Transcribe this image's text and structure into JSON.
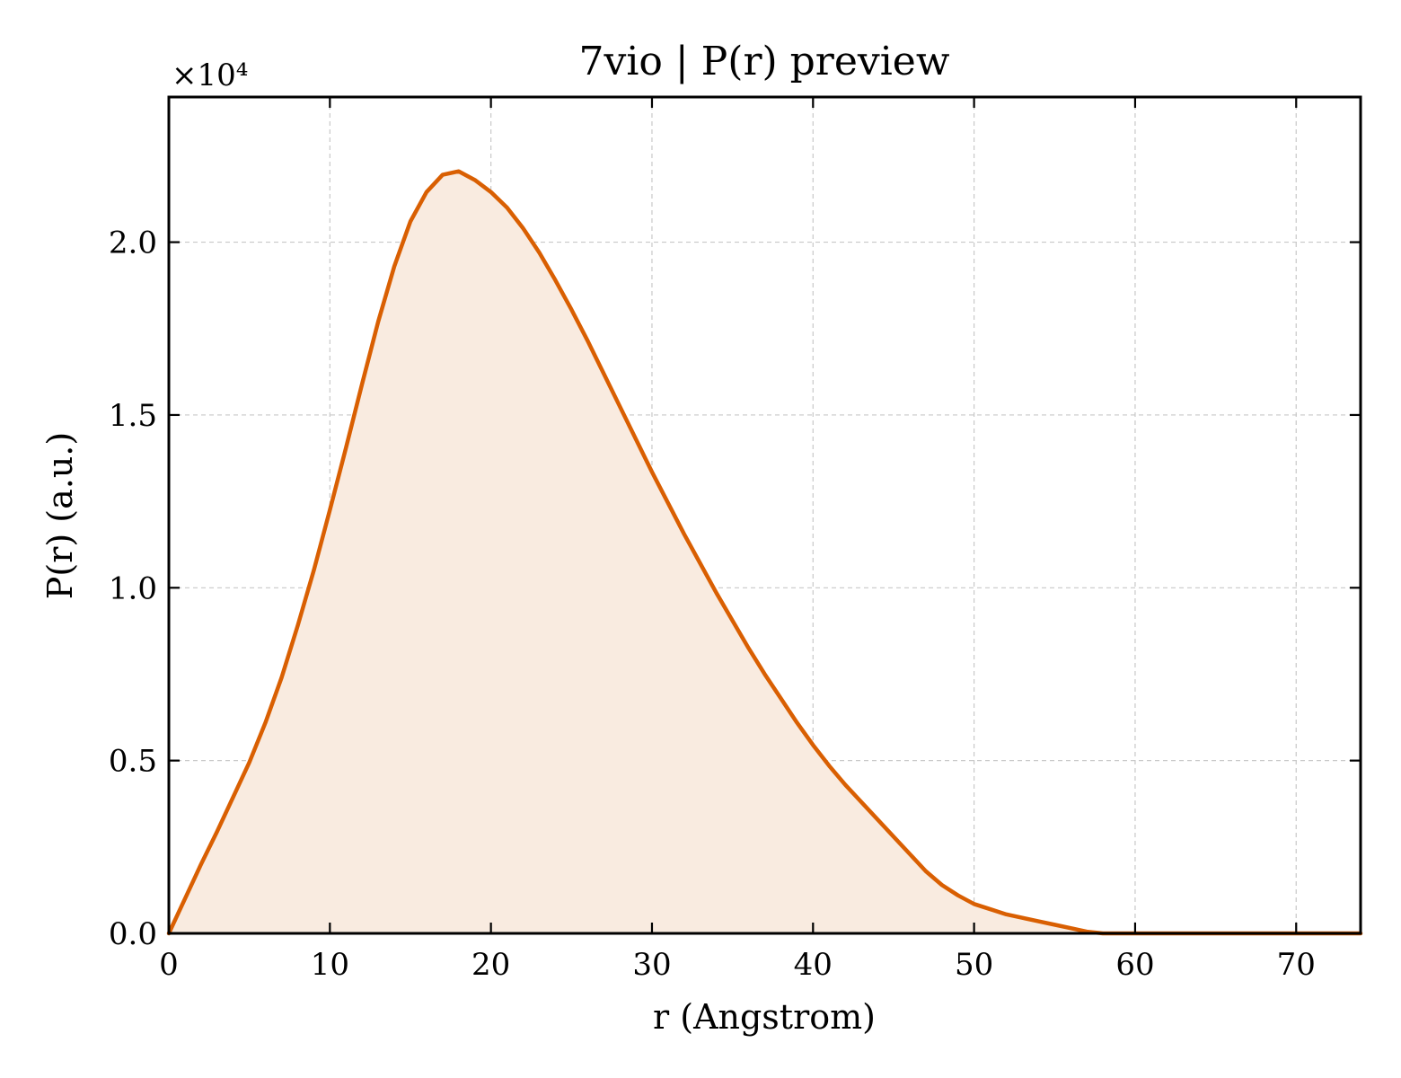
{
  "chart_data": {
    "type": "area",
    "title": "7vio | P(r) preview",
    "xlabel": "r (Angstrom)",
    "ylabel": "P(r) (a.u.)",
    "y_offset_label": "×10⁴",
    "xlim": [
      0,
      74
    ],
    "ylim": [
      0,
      24200
    ],
    "x_ticks": [
      0,
      10,
      20,
      30,
      40,
      50,
      60,
      70
    ],
    "x_tick_labels": [
      "0",
      "10",
      "20",
      "30",
      "40",
      "50",
      "60",
      "70"
    ],
    "y_ticks": [
      0,
      5000,
      10000,
      15000,
      20000
    ],
    "y_tick_labels": [
      "0.0",
      "0.5",
      "1.0",
      "1.5",
      "2.0"
    ],
    "grid": true,
    "legend": "none",
    "colors": {
      "line": "#d95f02",
      "fill": "#f9ebe0",
      "grid": "#c8c8c8",
      "axes": "#000000"
    },
    "series": [
      {
        "x": [
          0,
          1,
          2,
          3,
          4,
          5,
          6,
          7,
          8,
          9,
          10,
          11,
          12,
          13,
          14,
          15,
          16,
          17,
          18,
          19,
          20,
          21,
          22,
          23,
          24,
          25,
          26,
          27,
          28,
          29,
          30,
          31,
          32,
          33,
          34,
          35,
          36,
          37,
          38,
          39,
          40,
          41,
          42,
          43,
          44,
          45,
          46,
          47,
          48,
          49,
          50,
          51,
          52,
          53,
          54,
          55,
          56,
          57,
          58,
          59,
          60,
          61,
          62,
          63,
          64,
          65,
          66,
          67,
          68,
          69,
          70,
          71,
          72,
          73,
          74
        ],
        "values": [
          0,
          1000,
          2000,
          2950,
          3950,
          4950,
          6100,
          7400,
          8900,
          10500,
          12250,
          14050,
          15900,
          17700,
          19300,
          20600,
          21450,
          21950,
          22050,
          21800,
          21450,
          21000,
          20400,
          19700,
          18900,
          18050,
          17150,
          16200,
          15250,
          14300,
          13350,
          12450,
          11550,
          10700,
          9850,
          9050,
          8250,
          7500,
          6800,
          6100,
          5450,
          4850,
          4300,
          3800,
          3300,
          2800,
          2300,
          1800,
          1400,
          1100,
          850,
          700,
          550,
          450,
          350,
          250,
          150,
          50,
          0,
          0,
          0,
          0,
          0,
          0,
          0,
          0,
          0,
          0,
          0,
          0,
          0,
          0,
          0,
          0,
          0
        ]
      }
    ]
  }
}
